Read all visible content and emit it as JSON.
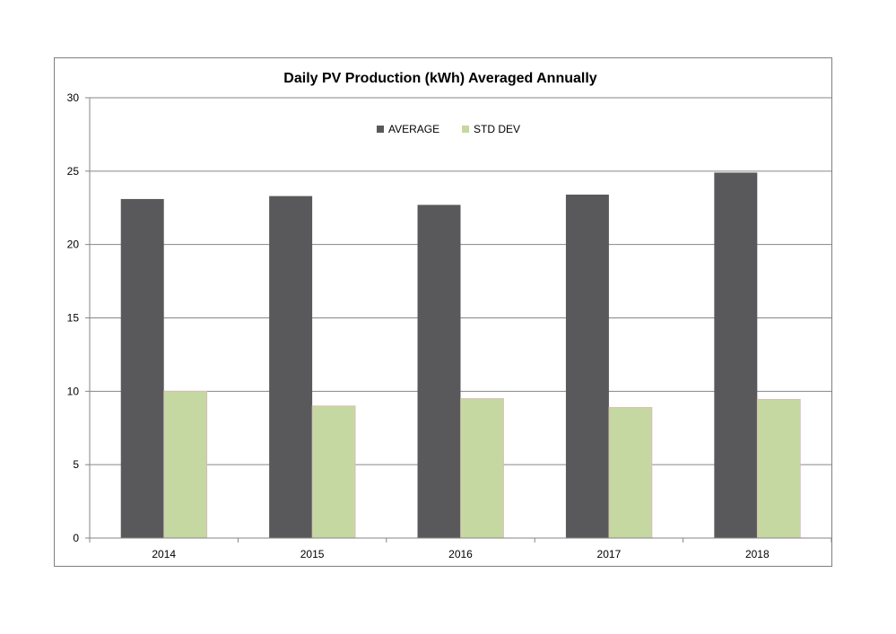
{
  "chart_data": {
    "type": "bar",
    "title": "Daily PV Production (kWh) Averaged Annually",
    "xlabel": "",
    "ylabel": "",
    "categories": [
      "2014",
      "2015",
      "2016",
      "2017",
      "2018"
    ],
    "series": [
      {
        "name": "AVERAGE",
        "values": [
          23.1,
          23.3,
          22.7,
          23.4,
          24.9
        ],
        "color": "#59595b"
      },
      {
        "name": "STD DEV",
        "values": [
          10.0,
          9.0,
          9.5,
          8.9,
          9.45
        ],
        "color": "#c5d8a1"
      }
    ],
    "ylim": [
      0,
      30
    ],
    "yticks": [
      "0",
      "5",
      "10",
      "15",
      "20",
      "25",
      "30"
    ],
    "grid": true,
    "legend": "top-center"
  }
}
